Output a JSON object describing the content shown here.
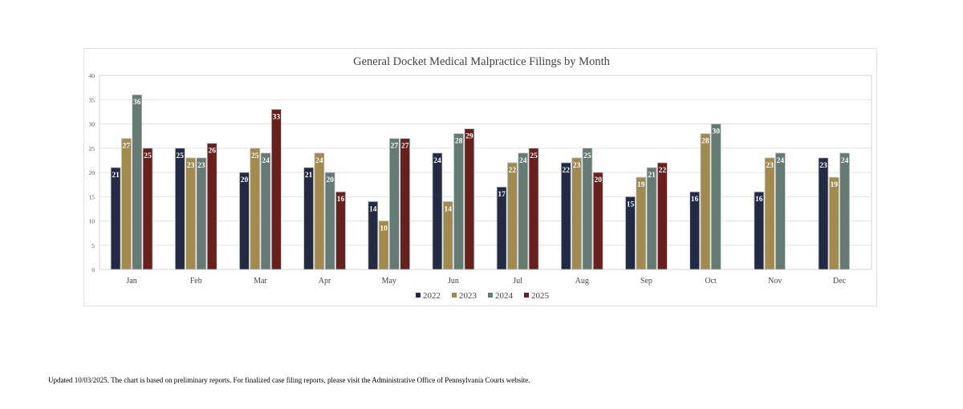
{
  "chart_data": {
    "type": "bar",
    "title": "General Docket Medical Malpractice Filings by Month",
    "xlabel": "",
    "ylabel": "",
    "ylim": [
      0,
      40
    ],
    "yticks": [
      0,
      5,
      10,
      15,
      20,
      25,
      30,
      35,
      40
    ],
    "grid": true,
    "legend_position": "bottom",
    "categories": [
      "Jan",
      "Feb",
      "Mar",
      "Apr",
      "May",
      "Jun",
      "Jul",
      "Aug",
      "Sep",
      "Oct",
      "Nov",
      "Dec"
    ],
    "series": [
      {
        "name": "2022",
        "color": "#222a44",
        "values": [
          21,
          25,
          20,
          21,
          14,
          24,
          17,
          22,
          15,
          16,
          16,
          23
        ]
      },
      {
        "name": "2023",
        "color": "#a08a4e",
        "values": [
          27,
          23,
          25,
          24,
          10,
          14,
          22,
          23,
          19,
          28,
          23,
          19
        ]
      },
      {
        "name": "2024",
        "color": "#637b73",
        "values": [
          36,
          23,
          24,
          20,
          27,
          28,
          24,
          25,
          21,
          30,
          24,
          24
        ]
      },
      {
        "name": "2025",
        "color": "#6a1f1f",
        "values": [
          25,
          26,
          33,
          16,
          27,
          29,
          25,
          20,
          22,
          null,
          null,
          null
        ]
      }
    ]
  },
  "footer": "Updated 10/03/2025.  The chart is based on preliminary reports.  For finalized case filing reports, please visit the Administrative Office of Pennsylvania Courts website."
}
